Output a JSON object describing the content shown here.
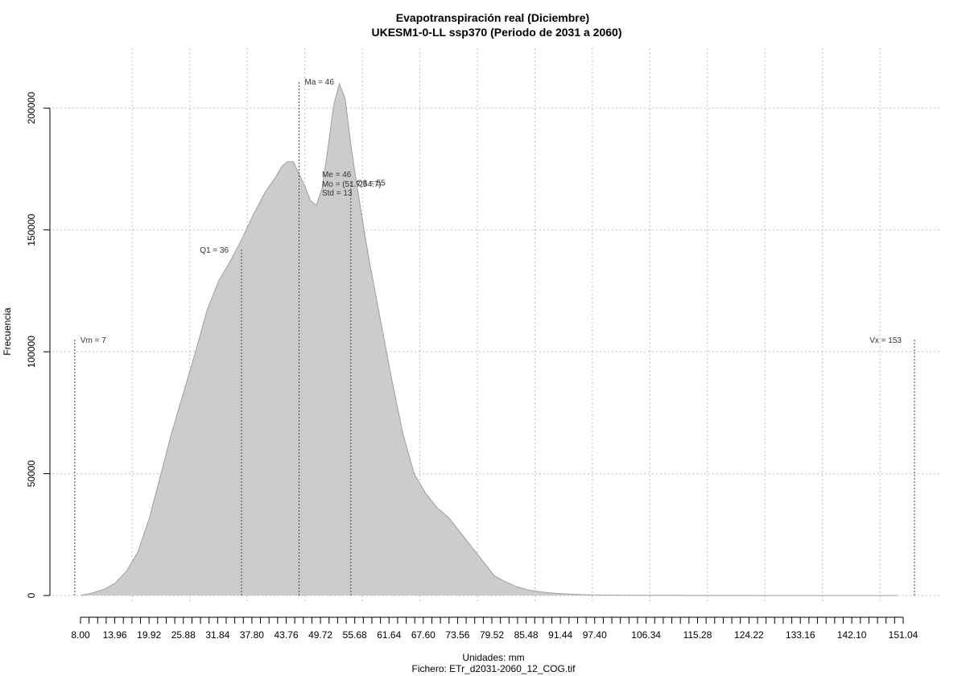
{
  "chart_data": {
    "type": "area",
    "title": "Evapotranspiración real (Diciembre)",
    "subtitle": "UKESM1-0-LL ssp370 (Periodo de 2031 a 2060)",
    "xlabel": "Unidades: mm",
    "ylabel": "Frecuencia",
    "file_label": "Fichero: ETr_d2031-2060_12_COG.tif",
    "xlim": [
      8.0,
      151.04
    ],
    "ylim": [
      0,
      210000
    ],
    "grid": true,
    "fill_color": "#cccccc",
    "line_color": "#9e9e9e",
    "x_tick_labels": [
      "8.00",
      "13.96",
      "19.92",
      "25.88",
      "31.84",
      "37.80",
      "43.76",
      "49.72",
      "55.68",
      "61.64",
      "67.60",
      "73.56",
      "79.52",
      "85.48",
      "91.44",
      "97.40",
      "106.34",
      "115.28",
      "124.22",
      "133.16",
      "142.10",
      "151.04"
    ],
    "y_ticks": [
      0,
      50000,
      100000,
      150000,
      200000
    ],
    "y_tick_labels": [
      "0",
      "50000",
      "100000",
      "150000",
      "200000"
    ],
    "x_grid": [
      17,
      27,
      37,
      47,
      57,
      67,
      77,
      87,
      97,
      107,
      117,
      127,
      137,
      147
    ],
    "series": [
      {
        "x": [
          8,
          10,
          12,
          14,
          16,
          18,
          20,
          22,
          24,
          26,
          28,
          30,
          32,
          34,
          36,
          38,
          40,
          42,
          43,
          44,
          45,
          46,
          47,
          48,
          49,
          50,
          51,
          52,
          53,
          54,
          55,
          56,
          58,
          60,
          62,
          64,
          66,
          68,
          70,
          72,
          74,
          76,
          78,
          80,
          82,
          84,
          86,
          88,
          90,
          92,
          94,
          96,
          98,
          100,
          105,
          110,
          115,
          120,
          130,
          140,
          150
        ],
        "y": [
          0,
          1000,
          2500,
          5000,
          10000,
          18000,
          32000,
          50000,
          68000,
          84000,
          100000,
          117000,
          129000,
          137000,
          146000,
          156000,
          165000,
          172000,
          176000,
          178000,
          178000,
          173000,
          168000,
          162000,
          160000,
          167000,
          183000,
          201000,
          210000,
          204000,
          185000,
          169000,
          140000,
          115000,
          90000,
          67000,
          50000,
          42000,
          36000,
          32000,
          26000,
          20000,
          14000,
          8000,
          5500,
          3500,
          2200,
          1500,
          1000,
          700,
          500,
          300,
          200,
          150,
          100,
          60,
          30,
          20,
          10,
          5,
          0
        ]
      }
    ],
    "annotations": [
      {
        "label": "Vm = 7",
        "x": 7,
        "y": 105000,
        "anchor": "start"
      },
      {
        "label": "Q1 = 36",
        "x": 36,
        "y": 142000,
        "anchor": "end"
      },
      {
        "label": "Ma = 46",
        "x": 46,
        "y": 211000,
        "anchor": "start"
      },
      {
        "label": "Me = 46",
        "x": 49,
        "y": 173000,
        "anchor": "start"
      },
      {
        "label": "Mo = (51.7,54.7)",
        "x": 49,
        "y": 169000,
        "anchor": "start"
      },
      {
        "label": "Std = 13",
        "x": 49,
        "y": 165500,
        "anchor": "start"
      },
      {
        "label": "Q3 = 55",
        "x": 55,
        "y": 169500,
        "anchor": "start"
      },
      {
        "label": "Vx = 153",
        "x": 153,
        "y": 105000,
        "anchor": "end"
      }
    ],
    "stat_lines": [
      {
        "name": "vm-line",
        "x": 7,
        "top": 105000
      },
      {
        "name": "q1-line",
        "x": 36,
        "top": 142000
      },
      {
        "name": "ma-line",
        "x": 46,
        "top": 211000
      },
      {
        "name": "q3-line",
        "x": 55,
        "top": 169500
      },
      {
        "name": "vx-line",
        "x": 153,
        "top": 105000
      }
    ]
  }
}
